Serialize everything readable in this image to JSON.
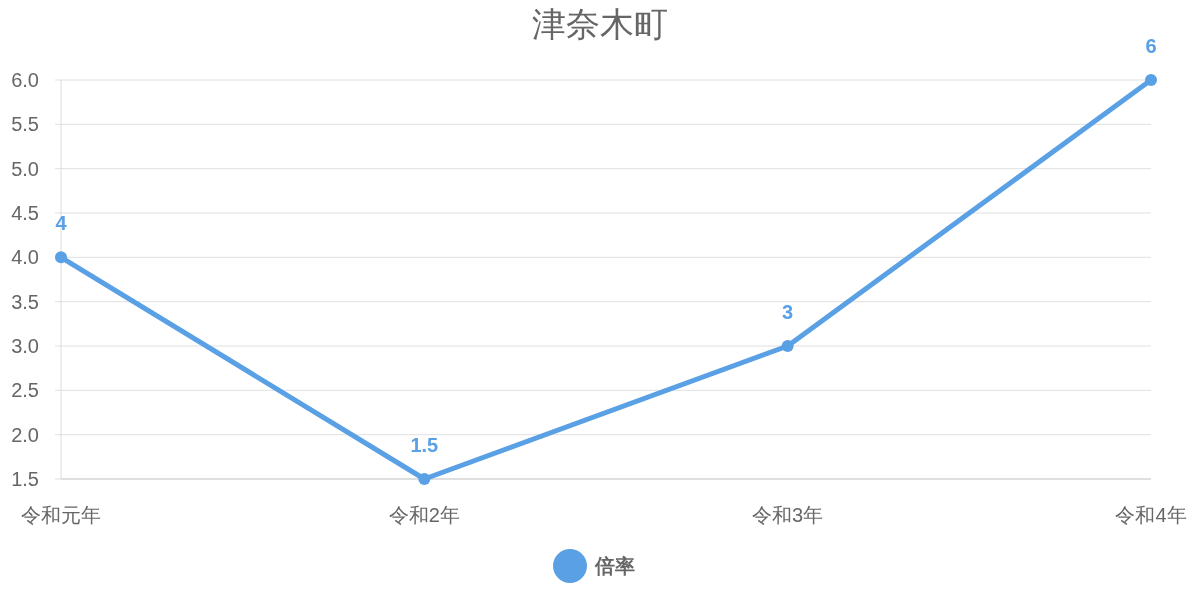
{
  "chart_data": {
    "type": "line",
    "title": "津奈木町",
    "categories": [
      "令和元年",
      "令和2年",
      "令和3年",
      "令和4年"
    ],
    "series": [
      {
        "name": "倍率",
        "color": "#5aa0e5",
        "values": [
          4,
          1.5,
          3,
          6
        ]
      }
    ],
    "ylim": [
      1.5,
      6
    ],
    "yticks": [
      {
        "value": 1.5,
        "label": "1.5"
      },
      {
        "value": 2,
        "label": "2.0"
      },
      {
        "value": 2.5,
        "label": "2.5"
      },
      {
        "value": 3,
        "label": "3.0"
      },
      {
        "value": 3.5,
        "label": "3.5"
      },
      {
        "value": 4,
        "label": "4.0"
      },
      {
        "value": 4.5,
        "label": "4.5"
      },
      {
        "value": 5,
        "label": "5.0"
      },
      {
        "value": 5.5,
        "label": "5.5"
      },
      {
        "value": 6,
        "label": "6.0"
      }
    ],
    "grid": "y",
    "legend": "bottom",
    "marker": "circle",
    "line_style": "solid",
    "data_labels": true
  }
}
